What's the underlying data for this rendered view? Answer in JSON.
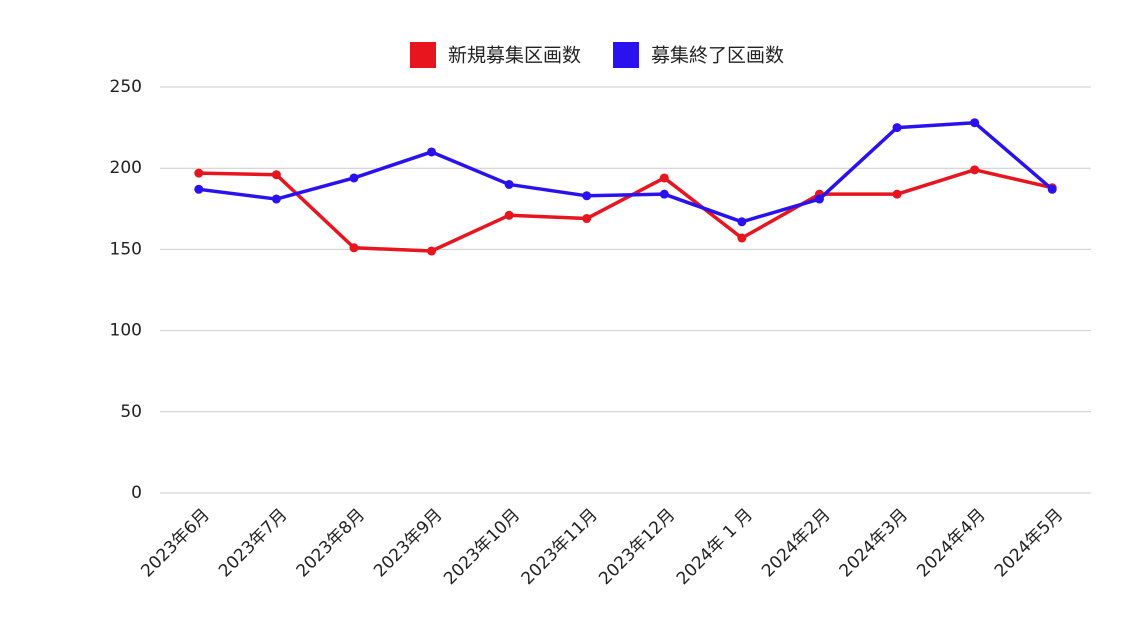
{
  "chart_data": {
    "type": "line",
    "categories": [
      "2023年6月",
      "2023年7月",
      "2023年8月",
      "2023年9月",
      "2023年10月",
      "2023年11月",
      "2023年12月",
      "2024年 1 月",
      "2024年2月",
      "2024年3月",
      "2024年4月",
      "2024年5月"
    ],
    "series": [
      {
        "name": "新規募集区画数",
        "color": "#e8141e",
        "values": [
          197,
          196,
          151,
          149,
          171,
          169,
          194,
          157,
          184,
          184,
          199,
          188
        ]
      },
      {
        "name": "募集終了区画数",
        "color": "#2a12f0",
        "values": [
          187,
          181,
          194,
          210,
          190,
          183,
          184,
          167,
          181,
          225,
          228,
          187
        ]
      }
    ],
    "ylim": [
      0,
      250
    ],
    "yticks": [
      0,
      50,
      100,
      150,
      200,
      250
    ],
    "grid": true,
    "legend": "top"
  }
}
